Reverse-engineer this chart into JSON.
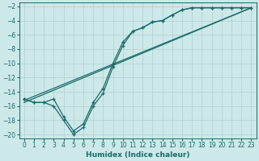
{
  "xlabel": "Humidex (Indice chaleur)",
  "xlim": [
    -0.5,
    23.5
  ],
  "ylim": [
    -20.5,
    -1.5
  ],
  "xticks": [
    0,
    1,
    2,
    3,
    4,
    5,
    6,
    7,
    8,
    9,
    10,
    11,
    12,
    13,
    14,
    15,
    16,
    17,
    18,
    19,
    20,
    21,
    22,
    23
  ],
  "yticks": [
    -20,
    -18,
    -16,
    -14,
    -12,
    -10,
    -8,
    -6,
    -4,
    -2
  ],
  "bg_color": "#cce8e8",
  "grid_color": "#b0d0d0",
  "line_color": "#1a6b6b",
  "marker_line1_x": [
    0,
    1,
    2,
    3,
    4,
    5,
    6,
    7,
    8,
    9,
    10,
    11,
    12,
    13,
    14,
    15,
    16,
    17,
    18,
    19,
    20,
    21,
    22,
    23
  ],
  "marker_line1_y": [
    -15,
    -15.5,
    -15.5,
    -15,
    -17.5,
    -19.5,
    -18.5,
    -15.5,
    -13.5,
    -10,
    -7,
    -5.5,
    -5,
    -4.2,
    -4,
    -3.2,
    -2.5,
    -2.2,
    -2.2,
    -2.2,
    -2.2,
    -2.2,
    -2.2,
    -2.2
  ],
  "marker_line2_x": [
    0,
    1,
    2,
    3,
    4,
    5,
    6,
    7,
    8,
    9,
    10,
    11,
    12,
    13,
    14,
    15,
    16,
    17,
    18,
    19,
    20,
    21,
    22,
    23
  ],
  "marker_line2_y": [
    -15,
    -15.5,
    -15.5,
    -16,
    -18,
    -20,
    -19,
    -16,
    -14.2,
    -10.5,
    -7.5,
    -5.5,
    -5,
    -4.2,
    -4,
    -3.2,
    -2.5,
    -2.2,
    -2.2,
    -2.2,
    -2.2,
    -2.2,
    -2.2,
    -2.2
  ],
  "straight_line1_x": [
    0,
    23
  ],
  "straight_line1_y": [
    -15.2,
    -2.2
  ],
  "straight_line2_x": [
    0,
    23
  ],
  "straight_line2_y": [
    -15.5,
    -2.2
  ]
}
